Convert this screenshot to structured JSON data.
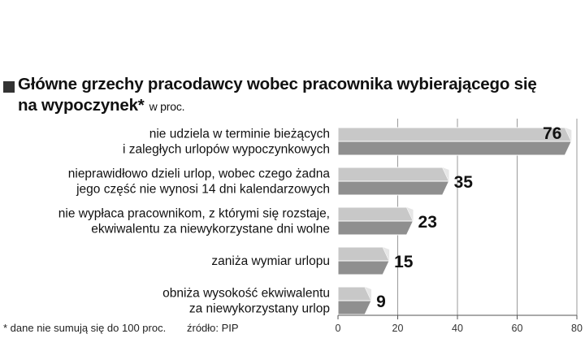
{
  "chart_data": {
    "type": "bar",
    "orientation": "horizontal",
    "title_line1": "Główne grzechy pracodawcy wobec pracownika wybierającego się",
    "title_line2": "na wypoczynek*",
    "unit": "w proc.",
    "categories": [
      [
        "nie udziela w terminie bieżących",
        "i zaległych urlopów wypoczynkowych"
      ],
      [
        "nieprawidłowo dzieli urlop, wobec czego żadna",
        "jego część nie wynosi 14 dni kalendarzowych"
      ],
      [
        "nie wypłaca pracownikom, z którymi się rozstaje,",
        "ekwiwalentu za niewykorzystane dni wolne"
      ],
      [
        "zaniża wymiar urlopu"
      ],
      [
        "obniża wysokość ekwiwalentu",
        "za niewykorzystany urlop"
      ]
    ],
    "values": [
      76,
      35,
      23,
      15,
      9
    ],
    "value_labels": [
      "76",
      "35",
      "23",
      "15",
      "9"
    ],
    "xlim": [
      0,
      80
    ],
    "ticks": [
      0,
      20,
      40,
      60,
      80
    ],
    "tick_labels": [
      "0",
      "20",
      "40",
      "60",
      "80"
    ],
    "grid": true,
    "footnote": "* dane nie sumują się do 100 proc.",
    "source": "źródło: PIP",
    "colors": {
      "bar_top": "#c8c8c8",
      "bar_bottom": "#8f8f8f",
      "bar_end": "#e6e6e6",
      "grid": "#9a9a9a",
      "axis": "#555555"
    }
  }
}
